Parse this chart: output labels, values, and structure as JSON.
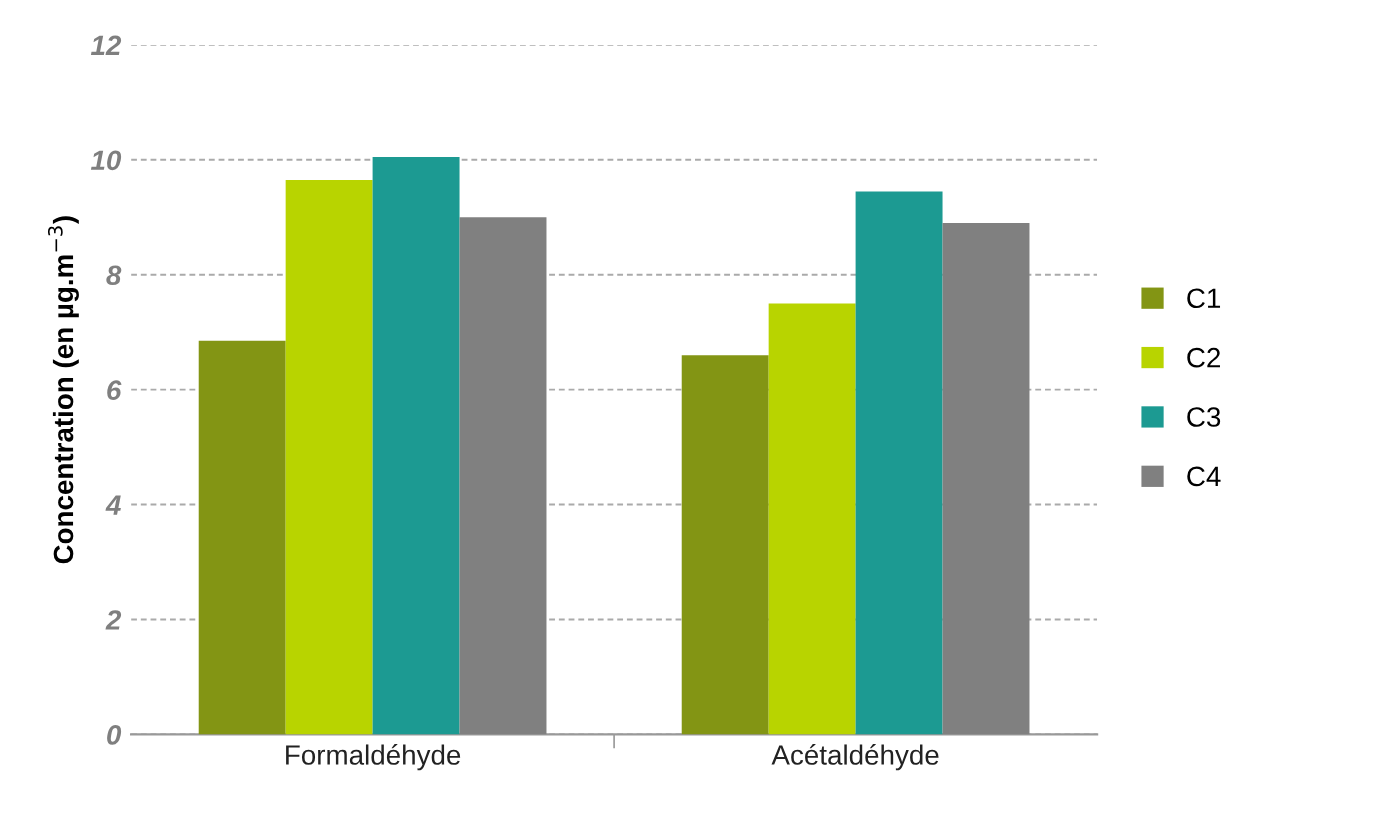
{
  "chart_data": {
    "type": "bar",
    "ylabel": "Concentration (en µg.m$^{−3}$)",
    "categories": [
      "Formaldéhyde",
      "Acétaldéhyde"
    ],
    "series": [
      {
        "name": "C1",
        "color": "#839514",
        "values": [
          6.85,
          6.6
        ]
      },
      {
        "name": "C2",
        "color": "#b8d400",
        "values": [
          9.65,
          7.5
        ]
      },
      {
        "name": "C3",
        "color": "#1c9a92",
        "values": [
          10.05,
          9.45
        ]
      },
      {
        "name": "C4",
        "color": "#808080",
        "values": [
          9.0,
          8.9
        ]
      }
    ],
    "ylim": [
      0,
      12
    ],
    "yticks": [
      0,
      2,
      4,
      6,
      8,
      10,
      12
    ],
    "grid": "y",
    "legend": "right"
  }
}
